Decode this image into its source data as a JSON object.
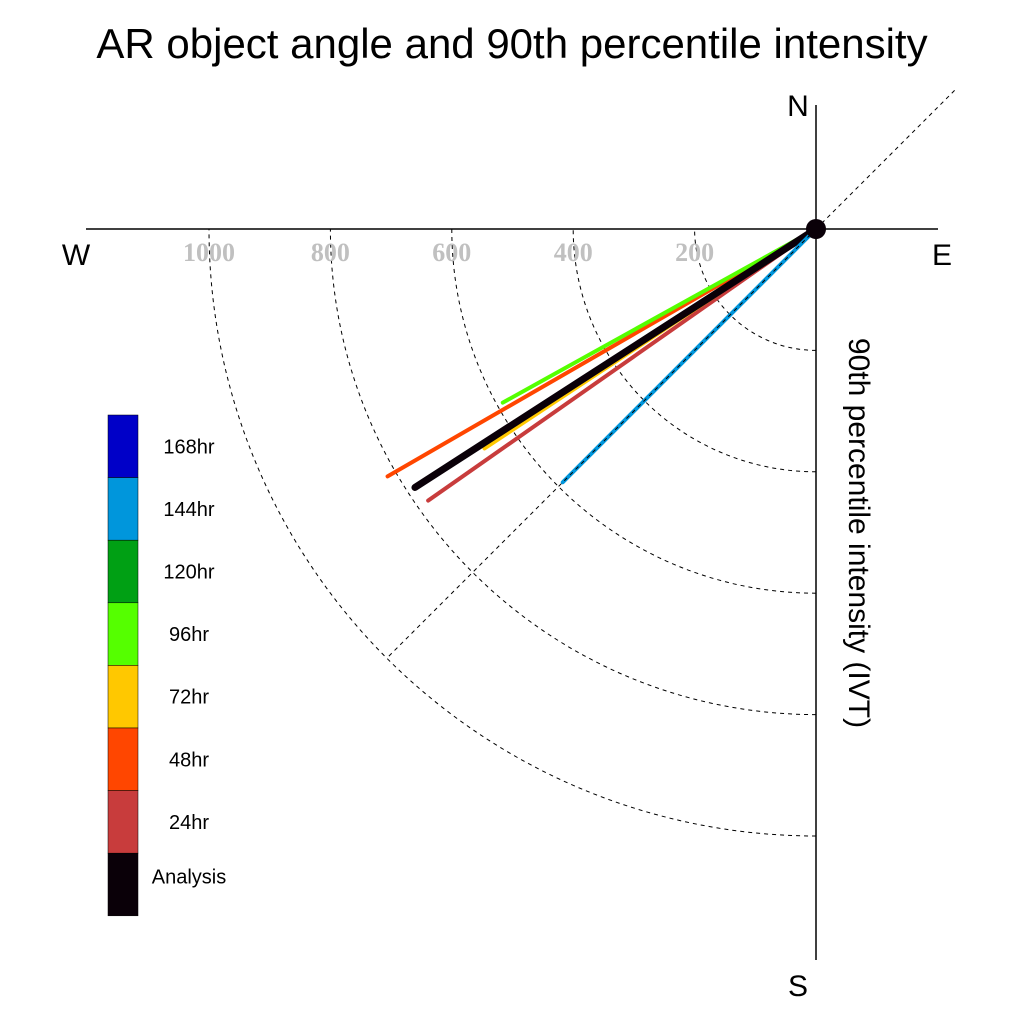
{
  "chart_data": {
    "type": "polar-vector",
    "title": "AR object angle and 90th percentile intensity",
    "radial_label": "90th percentile intensity (IVT)",
    "compass": {
      "north": "N",
      "south": "S",
      "east": "E",
      "west": "W"
    },
    "radial_ticks": [
      200,
      400,
      600,
      800,
      1000
    ],
    "radial_max": 1150,
    "grid": true,
    "reference_angle_deg": 225,
    "legend_placement": "left",
    "series": [
      {
        "name": "168hr",
        "color": "#0000c8",
        "angle_deg": null,
        "intensity": null
      },
      {
        "name": "144hr",
        "color": "#0096dc",
        "angle_deg": 225,
        "intensity": 590
      },
      {
        "name": "120hr",
        "color": "#00a014",
        "angle_deg": null,
        "intensity": null
      },
      {
        "name": "96hr",
        "color": "#55ff00",
        "angle_deg": 241,
        "intensity": 590
      },
      {
        "name": "72hr",
        "color": "#ffc800",
        "angle_deg": 236.5,
        "intensity": 655
      },
      {
        "name": "48hr",
        "color": "#ff4600",
        "angle_deg": 240,
        "intensity": 815
      },
      {
        "name": "24hr",
        "color": "#c83c3c",
        "angle_deg": 235,
        "intensity": 780
      },
      {
        "name": "Analysis",
        "color": "#0a0008",
        "angle_deg": 237.2,
        "intensity": 786
      }
    ]
  }
}
